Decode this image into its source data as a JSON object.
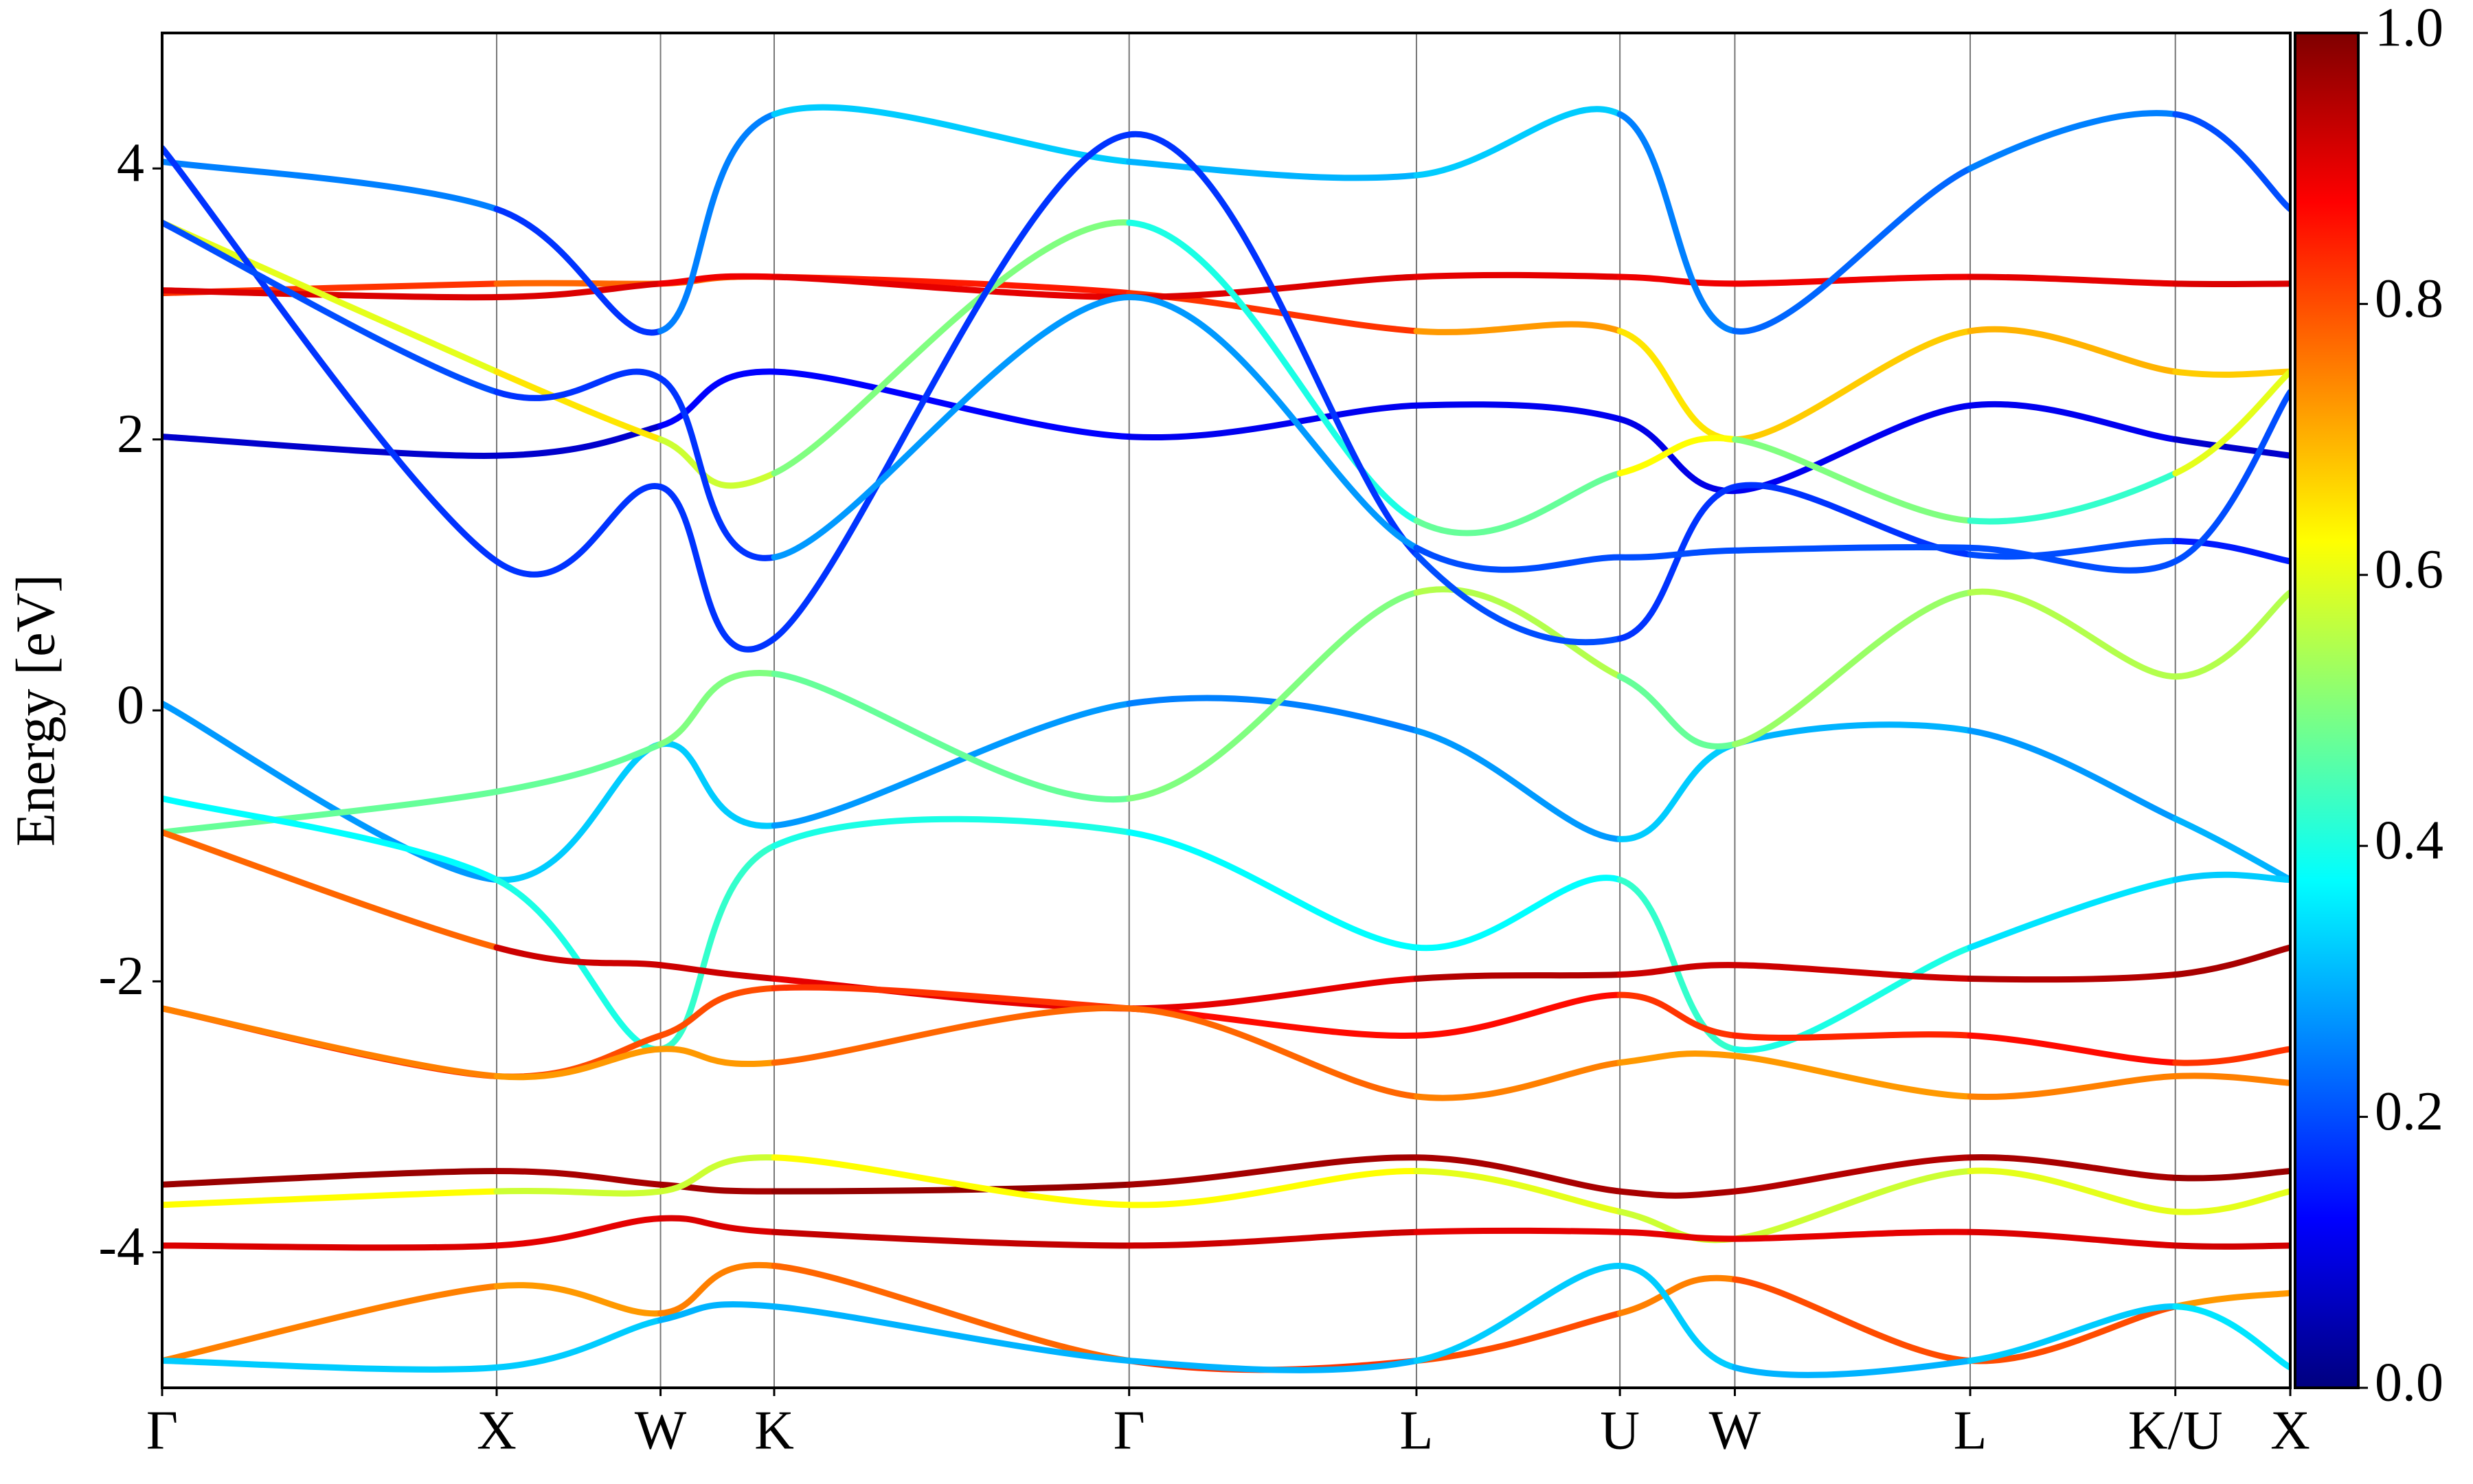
{
  "chart_data": {
    "type": "band",
    "y_label": "Energy [eV]",
    "x": [
      0,
      0.786,
      1.171,
      1.438,
      2.272,
      2.947,
      3.425,
      3.695,
      4.248,
      4.73,
      5.0
    ],
    "xlim": [
      0,
      5.0
    ],
    "xticks": [
      {
        "value": 0,
        "label": "Γ"
      },
      {
        "value": 0.786,
        "label": "X"
      },
      {
        "value": 1.171,
        "label": "W"
      },
      {
        "value": 1.438,
        "label": "K"
      },
      {
        "value": 2.272,
        "label": "Γ"
      },
      {
        "value": 2.947,
        "label": "L"
      },
      {
        "value": 3.425,
        "label": "U"
      },
      {
        "value": 3.695,
        "label": "W"
      },
      {
        "value": 4.248,
        "label": "L"
      },
      {
        "value": 4.73,
        "label": "K/U"
      },
      {
        "value": 5.0,
        "label": "X"
      }
    ],
    "ylim": [
      -5,
      5
    ],
    "yticks": [
      -4,
      -2,
      0,
      2,
      4
    ],
    "clim": [
      0,
      1
    ],
    "cticks": [
      {
        "value": 0,
        "label": "0.0"
      },
      0.2,
      0.4,
      0.6,
      0.8,
      {
        "value": 1,
        "label": "1.0"
      }
    ],
    "colormap": "jet",
    "grid": true,
    "series": [
      {
        "values": [
          0.05,
          -1.25,
          -0.25,
          -0.85,
          0.05,
          -0.15,
          -0.95,
          -0.25,
          -0.15,
          -0.8,
          -1.25
        ],
        "weights": [
          0.25,
          0.3,
          0.35,
          0.3,
          0.25,
          0.25,
          0.3,
          0.35,
          0.25,
          0.3,
          0.3
        ]
      },
      {
        "values": [
          -0.9,
          -0.6,
          -0.25,
          0.27,
          -0.65,
          0.87,
          0.25,
          -0.25,
          0.87,
          0.25,
          0.87
        ],
        "weights": [
          0.45,
          0.5,
          0.45,
          0.55,
          0.4,
          0.6,
          0.5,
          0.45,
          0.6,
          0.5,
          0.6
        ]
      },
      {
        "values": [
          2.02,
          1.88,
          2.1,
          2.5,
          2.02,
          2.25,
          2.15,
          1.62,
          2.25,
          2.0,
          1.88
        ],
        "weights": [
          0.1,
          0.05,
          0.1,
          0.15,
          0.1,
          0.12,
          0.1,
          0.1,
          0.12,
          0.1,
          0.05
        ]
      },
      {
        "values": [
          3.08,
          3.15,
          3.15,
          3.2,
          3.08,
          2.8,
          2.8,
          2.0,
          2.8,
          2.5,
          2.5
        ],
        "weights": [
          0.85,
          0.8,
          0.75,
          0.8,
          0.9,
          0.75,
          0.7,
          0.6,
          0.75,
          0.65,
          0.7
        ]
      },
      {
        "values": [
          3.1,
          3.05,
          3.15,
          3.2,
          3.05,
          3.2,
          3.2,
          3.15,
          3.2,
          3.15,
          3.15
        ],
        "weights": [
          0.9,
          0.92,
          0.9,
          0.88,
          0.92,
          0.9,
          0.9,
          0.88,
          0.9,
          0.9,
          0.92
        ]
      },
      {
        "values": [
          -0.65,
          -1.25,
          -2.5,
          -1.0,
          -0.9,
          -1.75,
          -1.25,
          -2.5,
          -1.75,
          -1.25,
          -1.25
        ],
        "weights": [
          0.4,
          0.35,
          0.45,
          0.4,
          0.4,
          0.35,
          0.4,
          0.45,
          0.35,
          0.35,
          0.3
        ]
      },
      {
        "values": [
          -0.9,
          -1.75,
          -1.88,
          -1.98,
          -2.2,
          -1.98,
          -1.95,
          -1.88,
          -1.98,
          -1.95,
          -1.75
        ],
        "weights": [
          0.6,
          0.95,
          0.9,
          0.95,
          0.85,
          0.95,
          0.95,
          0.9,
          0.95,
          0.95,
          0.97
        ]
      },
      {
        "values": [
          -2.2,
          -2.7,
          -2.4,
          -2.05,
          -2.2,
          -2.4,
          -2.1,
          -2.4,
          -2.4,
          -2.6,
          -2.5
        ],
        "weights": [
          0.85,
          0.8,
          0.8,
          0.8,
          0.85,
          0.88,
          0.85,
          0.8,
          0.88,
          0.85,
          0.8
        ]
      },
      {
        "values": [
          -2.2,
          -2.7,
          -2.5,
          -2.6,
          -2.2,
          -2.85,
          -2.6,
          -2.55,
          -2.85,
          -2.7,
          -2.75
        ],
        "weights": [
          0.75,
          0.75,
          0.7,
          0.75,
          0.8,
          0.75,
          0.75,
          0.7,
          0.75,
          0.75,
          0.75
        ]
      },
      {
        "values": [
          -3.5,
          -3.4,
          -3.5,
          -3.55,
          -3.5,
          -3.3,
          -3.55,
          -3.55,
          -3.3,
          -3.45,
          -3.4
        ],
        "weights": [
          0.98,
          0.97,
          0.95,
          0.98,
          0.98,
          0.95,
          0.97,
          0.95,
          0.95,
          0.97,
          0.98
        ]
      },
      {
        "values": [
          -3.65,
          -3.55,
          -3.55,
          -3.3,
          -3.65,
          -3.4,
          -3.7,
          -3.9,
          -3.4,
          -3.7,
          -3.55
        ],
        "weights": [
          0.65,
          0.6,
          0.55,
          0.6,
          0.65,
          0.6,
          0.6,
          0.55,
          0.6,
          0.6,
          0.6
        ]
      },
      {
        "values": [
          -3.95,
          -3.95,
          -3.75,
          -3.85,
          -3.95,
          -3.85,
          -3.85,
          -3.9,
          -3.85,
          -3.95,
          -3.95
        ],
        "weights": [
          0.92,
          0.9,
          0.9,
          0.92,
          0.95,
          0.9,
          0.9,
          0.9,
          0.9,
          0.92,
          0.92
        ]
      },
      {
        "values": [
          -4.8,
          -4.25,
          -4.45,
          -4.1,
          -4.8,
          -4.8,
          -4.45,
          -4.2,
          -4.8,
          -4.4,
          -4.3
        ],
        "weights": [
          0.8,
          0.7,
          0.75,
          0.75,
          0.8,
          0.85,
          0.75,
          0.75,
          0.85,
          0.75,
          0.7
        ]
      },
      {
        "values": [
          -4.8,
          -4.85,
          -4.5,
          -4.4,
          -4.8,
          -4.8,
          -4.1,
          -4.85,
          -4.8,
          -4.4,
          -4.85
        ],
        "weights": [
          0.3,
          0.35,
          0.3,
          0.3,
          0.3,
          0.3,
          0.35,
          0.3,
          0.3,
          0.35,
          0.35
        ]
      },
      {
        "values": [
          4.05,
          3.7,
          2.8,
          4.4,
          4.05,
          3.95,
          4.4,
          2.8,
          4.0,
          4.4,
          3.7
        ],
        "weights": [
          0.3,
          0.2,
          0.15,
          0.35,
          0.3,
          0.3,
          0.35,
          0.15,
          0.3,
          0.2,
          0.2
        ]
      },
      {
        "values": [
          3.6,
          2.5,
          2.0,
          1.75,
          3.6,
          1.4,
          1.75,
          2.0,
          1.4,
          1.75,
          2.5
        ],
        "weights": [
          0.5,
          0.7,
          0.6,
          0.55,
          0.45,
          0.35,
          0.6,
          0.65,
          0.35,
          0.5,
          0.7
        ]
      },
      {
        "values": [
          4.15,
          1.1,
          1.65,
          0.53,
          4.25,
          1.15,
          0.53,
          1.65,
          1.15,
          1.25,
          1.1
        ],
        "weights": [
          0.15,
          0.2,
          0.15,
          0.2,
          0.15,
          0.2,
          0.2,
          0.15,
          0.2,
          0.2,
          0.1
        ]
      },
      {
        "values": [
          3.6,
          2.35,
          2.45,
          1.13,
          3.05,
          1.2,
          1.13,
          1.18,
          1.2,
          1.1,
          2.35
        ],
        "weights": [
          0.2,
          0.2,
          0.15,
          0.2,
          0.35,
          0.2,
          0.2,
          0.2,
          0.2,
          0.2,
          0.2
        ]
      }
    ]
  }
}
